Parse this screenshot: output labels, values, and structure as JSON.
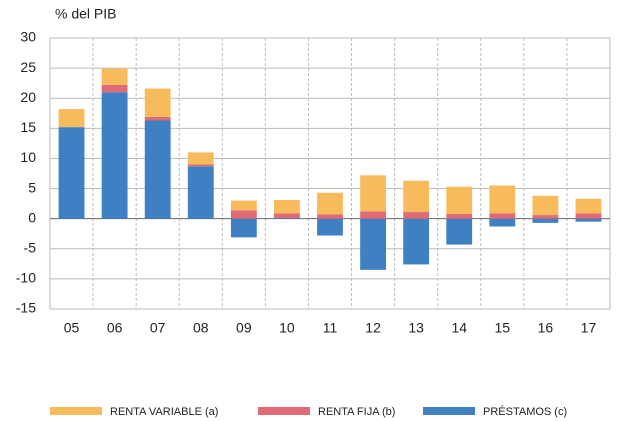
{
  "chart_data": {
    "type": "bar",
    "stacked": true,
    "ylabel": "% del PIB",
    "categories": [
      "05",
      "06",
      "07",
      "08",
      "09",
      "10",
      "11",
      "12",
      "13",
      "14",
      "15",
      "16",
      "17"
    ],
    "series": [
      {
        "name": "RENTA VARIABLE (a)",
        "color": "#f8bb5c",
        "values": [
          3.0,
          2.7,
          4.7,
          2.0,
          1.6,
          2.2,
          3.6,
          6.0,
          5.2,
          4.5,
          4.6,
          3.2,
          2.4
        ]
      },
      {
        "name": "RENTA FIJA (b)",
        "color": "#e06b76",
        "values": [
          0,
          1.2,
          0.6,
          0.3,
          1.4,
          0.8,
          0.7,
          1.2,
          1.1,
          0.8,
          0.9,
          0.6,
          0.9
        ]
      },
      {
        "name": "PRÉSTAMOS (c)",
        "color": "#3f80c3",
        "values": [
          15.2,
          21.0,
          16.3,
          8.7,
          -3.1,
          0.1,
          -2.8,
          -8.5,
          -7.6,
          -4.3,
          -1.3,
          -0.7,
          -0.5
        ]
      }
    ],
    "ylim": [
      -15,
      30
    ],
    "yticks": [
      -15,
      -10,
      -5,
      0,
      5,
      10,
      15,
      20,
      25,
      30
    ],
    "grid": true
  }
}
